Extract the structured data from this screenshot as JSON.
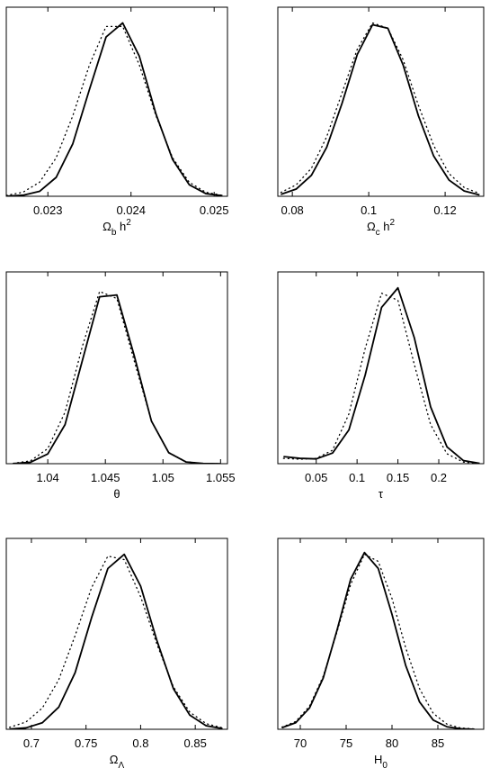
{
  "chart_data": [
    {
      "type": "line",
      "xlabel": [
        {
          "text": "Ω"
        },
        {
          "text": "b",
          "shift": "sub"
        },
        {
          "text": " h"
        },
        {
          "text": "2",
          "shift": "sup"
        }
      ],
      "xlim": [
        0.0225,
        0.02516
      ],
      "ylim": [
        0,
        1.08
      ],
      "xticks": [
        0.023,
        0.024,
        0.025
      ],
      "x": [
        0.0225,
        0.0227,
        0.0229,
        0.0231,
        0.0233,
        0.0235,
        0.0237,
        0.0239,
        0.0241,
        0.0243,
        0.0245,
        0.0247,
        0.0249,
        0.0251
      ],
      "series": [
        {
          "color": "#000000",
          "style": "solid",
          "values": [
            0.0008,
            0.006,
            0.028,
            0.108,
            0.3,
            0.61,
            0.91,
            0.99,
            0.8,
            0.47,
            0.21,
            0.066,
            0.015,
            0.003
          ]
        },
        {
          "color": "#000000",
          "style": "dotted",
          "values": [
            0.005,
            0.023,
            0.08,
            0.22,
            0.46,
            0.75,
            0.97,
            0.97,
            0.75,
            0.46,
            0.22,
            0.08,
            0.023,
            0.005
          ]
        }
      ]
    },
    {
      "type": "line",
      "xlabel": [
        {
          "text": "Ω"
        },
        {
          "text": "c",
          "shift": "sub"
        },
        {
          "text": " h"
        },
        {
          "text": "2",
          "shift": "sup"
        }
      ],
      "xlim": [
        0.0762,
        0.1301
      ],
      "ylim": [
        0,
        1.08
      ],
      "xticks": [
        0.08,
        0.1,
        0.12
      ],
      "x": [
        0.077,
        0.081,
        0.085,
        0.089,
        0.093,
        0.097,
        0.101,
        0.105,
        0.109,
        0.113,
        0.117,
        0.121,
        0.125,
        0.129
      ],
      "series": [
        {
          "color": "#000000",
          "style": "solid",
          "values": [
            0.011,
            0.041,
            0.12,
            0.28,
            0.53,
            0.81,
            0.98,
            0.96,
            0.75,
            0.46,
            0.23,
            0.093,
            0.03,
            0.008
          ]
        },
        {
          "color": "#000000",
          "style": "dotted",
          "values": [
            0.022,
            0.065,
            0.16,
            0.34,
            0.59,
            0.84,
            0.99,
            0.96,
            0.78,
            0.52,
            0.29,
            0.13,
            0.05,
            0.016
          ]
        }
      ]
    },
    {
      "type": "line",
      "xlabel": [
        {
          "text": "θ"
        }
      ],
      "xlim": [
        1.0364,
        1.0556
      ],
      "ylim": [
        0,
        1.08
      ],
      "xticks": [
        1.04,
        1.045,
        1.05,
        1.055
      ],
      "x": [
        1.037,
        1.0385,
        1.04,
        1.0415,
        1.043,
        1.0445,
        1.046,
        1.0475,
        1.049,
        1.0505,
        1.052,
        1.0535,
        1.055
      ],
      "series": [
        {
          "color": "#000000",
          "style": "solid",
          "values": [
            0.0008,
            0.008,
            0.055,
            0.22,
            0.58,
            0.94,
            0.95,
            0.61,
            0.24,
            0.062,
            0.0097,
            0.0009,
            0
          ]
        },
        {
          "color": "#000000",
          "style": "dotted",
          "values": [
            0.002,
            0.016,
            0.085,
            0.29,
            0.66,
            0.97,
            0.93,
            0.58,
            0.24,
            0.063,
            0.011,
            0.001,
            0
          ]
        }
      ]
    },
    {
      "type": "line",
      "xlabel": [
        {
          "text": "τ"
        }
      ],
      "xlim": [
        0.003,
        0.255
      ],
      "ylim": [
        0,
        1.08
      ],
      "xticks": [
        0.05,
        0.1,
        0.15,
        0.2
      ],
      "x": [
        0.01,
        0.03,
        0.05,
        0.07,
        0.09,
        0.11,
        0.13,
        0.15,
        0.17,
        0.19,
        0.21,
        0.23,
        0.25
      ],
      "series": [
        {
          "color": "#000000",
          "style": "solid",
          "values": [
            0.04,
            0.03,
            0.027,
            0.06,
            0.19,
            0.5,
            0.88,
            0.99,
            0.71,
            0.32,
            0.095,
            0.018,
            0.002
          ]
        },
        {
          "color": "#000000",
          "style": "dotted",
          "values": [
            0.03,
            0.025,
            0.03,
            0.076,
            0.28,
            0.65,
            0.96,
            0.92,
            0.56,
            0.22,
            0.056,
            0.009,
            0.001
          ]
        }
      ]
    },
    {
      "type": "line",
      "xlabel": [
        {
          "text": "Ω"
        },
        {
          "text": "Λ",
          "shift": "sub"
        }
      ],
      "xlim": [
        0.677,
        0.8795
      ],
      "ylim": [
        0,
        1.08
      ],
      "xticks": [
        0.7,
        0.75,
        0.8,
        0.85
      ],
      "x": [
        0.68,
        0.695,
        0.71,
        0.725,
        0.74,
        0.755,
        0.77,
        0.785,
        0.8,
        0.815,
        0.83,
        0.845,
        0.86,
        0.875
      ],
      "series": [
        {
          "color": "#000000",
          "style": "solid",
          "values": [
            0.001,
            0.008,
            0.037,
            0.125,
            0.32,
            0.63,
            0.91,
            0.99,
            0.81,
            0.5,
            0.23,
            0.08,
            0.02,
            0.004
          ]
        },
        {
          "color": "#000000",
          "style": "dotted",
          "values": [
            0.011,
            0.041,
            0.12,
            0.28,
            0.53,
            0.8,
            0.98,
            0.96,
            0.75,
            0.48,
            0.24,
            0.097,
            0.032,
            0.008
          ]
        }
      ]
    },
    {
      "type": "line",
      "xlabel": [
        {
          "text": "H"
        },
        {
          "text": "0",
          "shift": "sub"
        }
      ],
      "xlim": [
        67.55,
        90
      ],
      "ylim": [
        0,
        1.08
      ],
      "xticks": [
        70,
        75,
        80,
        85
      ],
      "x": [
        68,
        69.5,
        71,
        72.5,
        74,
        75.5,
        77,
        78.5,
        80,
        81.5,
        83,
        84.5,
        86,
        87.5,
        89
      ],
      "series": [
        {
          "color": "#000000",
          "style": "solid",
          "values": [
            0.009,
            0.037,
            0.12,
            0.29,
            0.56,
            0.85,
            1.0,
            0.91,
            0.65,
            0.36,
            0.155,
            0.052,
            0.014,
            0.003,
            0
          ]
        },
        {
          "color": "#000000",
          "style": "dotted",
          "values": [
            0.012,
            0.044,
            0.13,
            0.3,
            0.55,
            0.82,
            0.99,
            0.95,
            0.74,
            0.46,
            0.23,
            0.09,
            0.029,
            0.007,
            0.002
          ]
        }
      ]
    }
  ]
}
